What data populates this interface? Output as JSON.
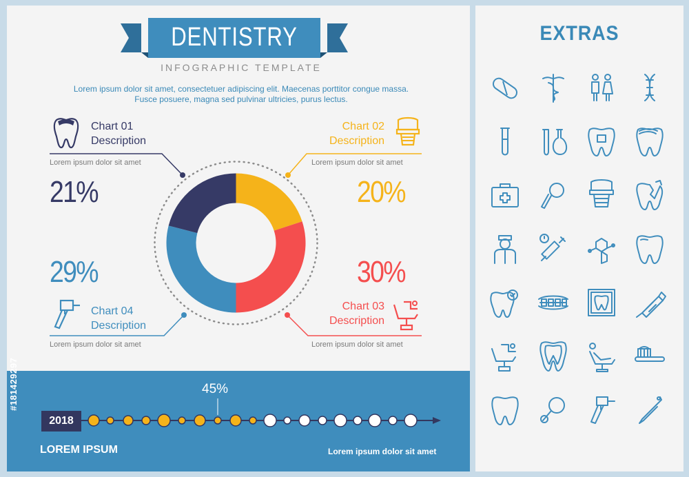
{
  "header": {
    "title": "DENTISTRY",
    "subtitle": "INFOGRAPHIC TEMPLATE",
    "intro": "Lorem ipsum dolor sit amet, consectetuer adipiscing elit. Maecenas porttitor congue massa. Fusce posuere, magna sed pulvinar ultricies, purus lectus."
  },
  "charts": [
    {
      "label": "Chart 01",
      "desc": "Description",
      "lorem": "Lorem ipsum dolor sit amet",
      "pct": "21%",
      "color": "#363a66"
    },
    {
      "label": "Chart 02",
      "desc": "Description",
      "lorem": "Lorem ipsum dolor sit amet",
      "pct": "20%",
      "color": "#f5b31a"
    },
    {
      "label": "Chart 03",
      "desc": "Description",
      "lorem": "Lorem ipsum dolor sit amet",
      "pct": "30%",
      "color": "#f44e4e"
    },
    {
      "label": "Chart 04",
      "desc": "Description",
      "lorem": "Lorem ipsum dolor sit amet",
      "pct": "29%",
      "color": "#3f8dbd"
    }
  ],
  "chart_data": {
    "type": "pie",
    "categories": [
      "Chart 02",
      "Chart 03",
      "Chart 04",
      "Chart 01"
    ],
    "values": [
      20,
      30,
      29,
      21
    ],
    "colors": [
      "#f5b31a",
      "#f44e4e",
      "#3f8dbd",
      "#363a66"
    ]
  },
  "timeline": {
    "year": "2018",
    "percent_label": "45%",
    "progress": 0.45,
    "lorem_big": "LOREM IPSUM",
    "lorem_small": "Lorem ipsum dolor sit amet",
    "accent": "#f5b31a"
  },
  "extras": {
    "title": "EXTRAS",
    "icons": [
      "pill-icon",
      "caduceus-icon",
      "people-icon",
      "dna-icon",
      "test-tube-icon",
      "flask-icon",
      "tooth-cavity-icon",
      "tooth-decay-icon",
      "first-aid-kit-icon",
      "dental-mirror-icon",
      "dental-crown-icon",
      "broken-tooth-icon",
      "dentist-icon",
      "syringe-icon",
      "molecule-icon",
      "tooth-icon",
      "tooth-check-icon",
      "braces-icon",
      "x-ray-icon",
      "toothpaste-icon",
      "dental-chair-icon",
      "tooth-root-icon",
      "patient-chair-icon",
      "toothbrush-icon",
      "molar-icon",
      "magnifier-icon",
      "dental-drill-icon",
      "dental-probe-icon"
    ]
  },
  "watermark": "#181429297"
}
